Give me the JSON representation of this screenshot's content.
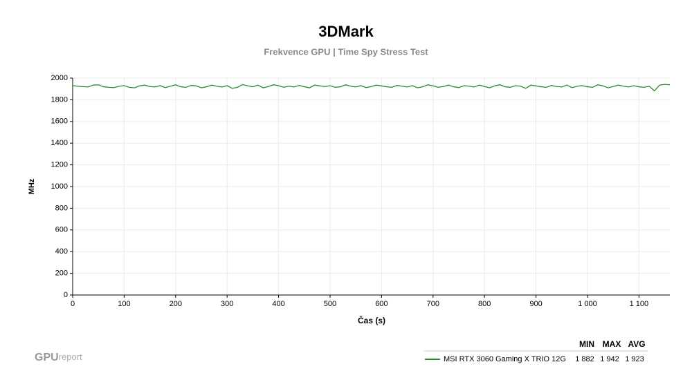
{
  "chart_data": {
    "type": "line",
    "title": "3DMark",
    "subtitle": "Frekvence GPU | Time Spy Stress Test",
    "x_label": "Čas (s)",
    "y_label": "MHz",
    "x": [
      0,
      10,
      20,
      30,
      40,
      50,
      60,
      70,
      80,
      90,
      100,
      110,
      120,
      130,
      140,
      150,
      160,
      170,
      180,
      190,
      200,
      210,
      220,
      230,
      240,
      250,
      260,
      270,
      280,
      290,
      300,
      310,
      320,
      330,
      340,
      350,
      360,
      370,
      380,
      390,
      400,
      410,
      420,
      430,
      440,
      450,
      460,
      470,
      480,
      490,
      500,
      510,
      520,
      530,
      540,
      550,
      560,
      570,
      580,
      590,
      600,
      610,
      620,
      630,
      640,
      650,
      660,
      670,
      680,
      690,
      700,
      710,
      720,
      730,
      740,
      750,
      760,
      770,
      780,
      790,
      800,
      810,
      820,
      830,
      840,
      850,
      860,
      870,
      880,
      890,
      900,
      910,
      920,
      930,
      940,
      950,
      960,
      970,
      980,
      990,
      1000,
      1010,
      1020,
      1030,
      1040,
      1050,
      1060,
      1070,
      1080,
      1090,
      1100,
      1110,
      1120,
      1130,
      1140,
      1150,
      1160
    ],
    "series": [
      {
        "name": "MSI RTX 3060 Gaming X TRIO 12G",
        "color": "#2a8a2a",
        "values": [
          1930,
          1925,
          1921,
          1918,
          1935,
          1938,
          1920,
          1915,
          1912,
          1925,
          1930,
          1915,
          1910,
          1928,
          1935,
          1922,
          1918,
          1930,
          1912,
          1925,
          1938,
          1920,
          1915,
          1932,
          1928,
          1910,
          1920,
          1935,
          1925,
          1918,
          1930,
          1905,
          1915,
          1940,
          1928,
          1920,
          1935,
          1910,
          1922,
          1938,
          1930,
          1915,
          1925,
          1918,
          1932,
          1920,
          1910,
          1935,
          1928,
          1922,
          1930,
          1915,
          1920,
          1938,
          1925,
          1918,
          1930,
          1912,
          1922,
          1935,
          1928,
          1920,
          1915,
          1932,
          1925,
          1918,
          1930,
          1910,
          1920,
          1938,
          1928,
          1915,
          1922,
          1935,
          1920,
          1912,
          1930,
          1925,
          1918,
          1935,
          1922,
          1910,
          1928,
          1938,
          1920,
          1915,
          1930,
          1925,
          1905,
          1935,
          1928,
          1920,
          1915,
          1932,
          1922,
          1918,
          1935,
          1912,
          1925,
          1930,
          1920,
          1915,
          1938,
          1928,
          1910,
          1922,
          1935,
          1925,
          1918,
          1930,
          1920,
          1915,
          1925,
          1882,
          1935,
          1942,
          1938
        ],
        "stats": [
          "1 882",
          "1 942",
          "1 923"
        ]
      }
    ],
    "stats_headers": [
      "MIN",
      "MAX",
      "AVG"
    ],
    "xlim": [
      0,
      1160
    ],
    "ylim": [
      0,
      2000
    ],
    "xticks": [
      0,
      100,
      200,
      300,
      400,
      500,
      600,
      700,
      800,
      900,
      {
        "value": 1000,
        "label": "1 000"
      },
      {
        "value": 1100,
        "label": "1 100"
      }
    ],
    "yticks": [
      0,
      200,
      400,
      600,
      800,
      1000,
      1200,
      1400,
      1600,
      1800,
      2000
    ],
    "grid": true,
    "watermark_bold": "GPU",
    "watermark_light": "report"
  }
}
